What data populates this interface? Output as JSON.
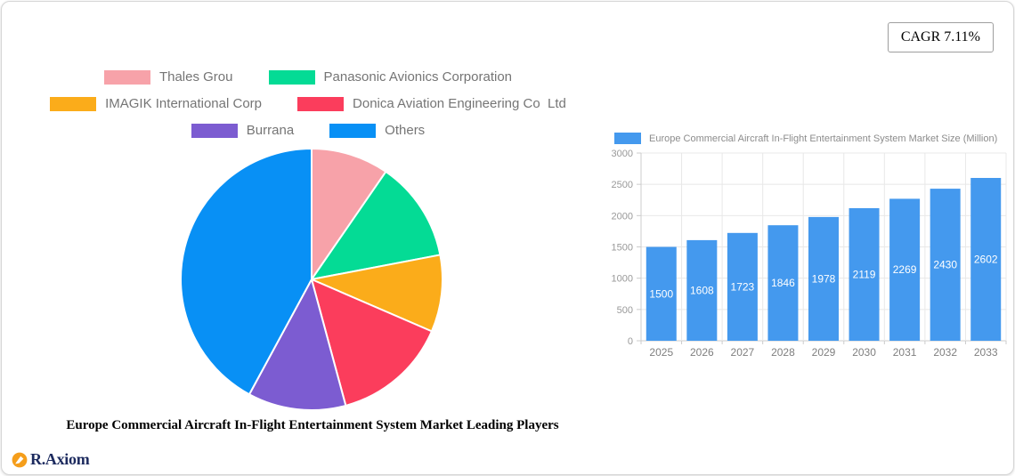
{
  "header": {
    "cagr_label": "CAGR 7.11%"
  },
  "logo": {
    "text": "R.Axiom",
    "icon": "pen-circle-icon",
    "icon_color": "#f59e1b",
    "text_color": "#1d2b5f"
  },
  "legend": {
    "rows": [
      [
        0,
        1
      ],
      [
        2,
        3
      ],
      [
        4,
        5
      ]
    ]
  },
  "colors": {
    "grid": "#e8e8e8",
    "axis": "#cccccc",
    "tick_label": "#999999",
    "x_label": "#7f7f7f",
    "legend_text": "#757575"
  },
  "chart_data": [
    {
      "type": "pie",
      "title": "Europe Commercial Aircraft In-Flight Entertainment System Market Leading Players",
      "labels": [
        "Thales Grou",
        "Panasonic Avionics Corporation",
        "IMAGIK International Corp",
        "Donica Aviation Engineering Co  Ltd",
        "Burrana",
        "Others"
      ],
      "values_pct": [
        9.6,
        12.4,
        9.5,
        14.3,
        12.1,
        42.1
      ],
      "colors": [
        "#f7a2a9",
        "#04db95",
        "#fbac1a",
        "#fb3d5c",
        "#7c5cd1",
        "#0890f5"
      ],
      "start_angle_deg": -90,
      "direction": "clockwise",
      "legend_position": "top"
    },
    {
      "type": "bar",
      "title": "Europe Commercial Aircraft In-Flight Entertainment System Market Size (Million)",
      "categories": [
        "2025",
        "2026",
        "2027",
        "2028",
        "2029",
        "2030",
        "2031",
        "2032",
        "2033"
      ],
      "values": [
        1500,
        1608,
        1723,
        1846,
        1978,
        2119,
        2269,
        2430,
        2602
      ],
      "bar_color": "#4499ee",
      "ylim": [
        0,
        3000
      ],
      "ytick_step": 500,
      "grid": true,
      "value_labels": "inside-middle-white",
      "legend_position": "top-left"
    }
  ]
}
